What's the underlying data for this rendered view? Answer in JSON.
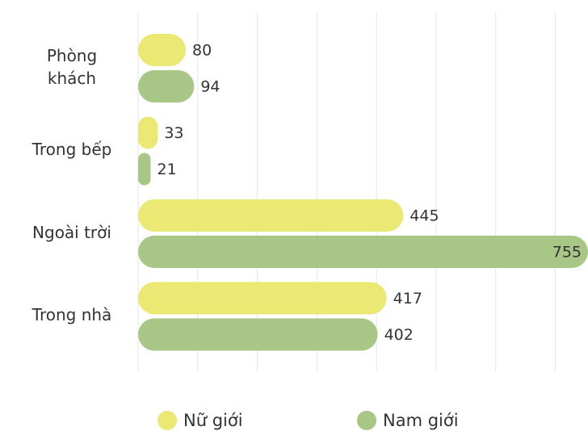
{
  "chart_data": {
    "type": "bar",
    "orientation": "horizontal",
    "categories": [
      "Phòng khách",
      "Trong bếp",
      "Ngoài trời",
      "Trong nhà"
    ],
    "series": [
      {
        "name": "Nữ giới",
        "color": "#ece874",
        "values": [
          80,
          33,
          445,
          417
        ]
      },
      {
        "name": "Nam giới",
        "color": "#a8c686",
        "values": [
          94,
          21,
          755,
          402
        ]
      }
    ],
    "xlim": [
      0,
      755
    ],
    "xticks": [
      0,
      100,
      200,
      300,
      400,
      500,
      600,
      700
    ],
    "grid": true,
    "legend": "bottom"
  }
}
